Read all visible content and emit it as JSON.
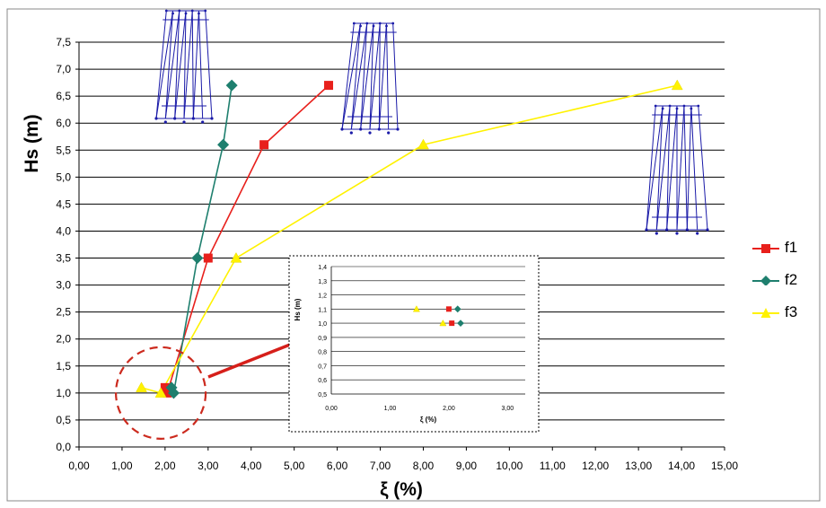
{
  "chart_data": [
    {
      "type": "scatter",
      "xlabel": "ξ (%)",
      "ylabel": "Hs (m)",
      "xlim": [
        0,
        15
      ],
      "ylim": [
        0,
        7.5
      ],
      "x_ticks": [
        "0,00",
        "1,00",
        "2,00",
        "3,00",
        "4,00",
        "5,00",
        "6,00",
        "7,00",
        "8,00",
        "9,00",
        "10,00",
        "11,00",
        "12,00",
        "13,00",
        "14,00",
        "15,00"
      ],
      "y_ticks": [
        "0,0",
        "0,5",
        "1,0",
        "1,5",
        "2,0",
        "2,5",
        "3,0",
        "3,5",
        "4,0",
        "4,5",
        "5,0",
        "5,5",
        "6,0",
        "6,5",
        "7,0",
        "7,5"
      ],
      "grid": "horizontal",
      "legend": "right",
      "series": [
        {
          "name": "f1",
          "color": "#e8201c",
          "marker": "square",
          "points": [
            [
              2.0,
              1.1
            ],
            [
              2.05,
              1.0
            ],
            [
              3.0,
              3.5
            ],
            [
              4.3,
              5.6
            ],
            [
              5.8,
              6.7
            ]
          ]
        },
        {
          "name": "f2",
          "color": "#1e7f6e",
          "marker": "diamond",
          "points": [
            [
              2.15,
              1.1
            ],
            [
              2.2,
              1.0
            ],
            [
              2.75,
              3.5
            ],
            [
              3.35,
              5.6
            ],
            [
              3.55,
              6.7
            ]
          ]
        },
        {
          "name": "f3",
          "color": "#fff200",
          "marker": "triangle",
          "points": [
            [
              1.45,
              1.1
            ],
            [
              1.9,
              1.0
            ],
            [
              3.65,
              3.5
            ],
            [
              8.0,
              5.6
            ],
            [
              13.9,
              6.7
            ]
          ]
        }
      ]
    },
    {
      "type": "scatter",
      "xlabel": "ξ (%)",
      "ylabel": "Hs (m)",
      "xlim": [
        0,
        3.3
      ],
      "ylim": [
        0.5,
        1.4
      ],
      "x_ticks": [
        "0,00",
        "1,00",
        "2,00",
        "3,00"
      ],
      "y_ticks": [
        "0,5",
        "0,6",
        "0,7",
        "0,8",
        "0,9",
        "1,0",
        "1,1",
        "1,2",
        "1,3",
        "1,4"
      ],
      "grid": "horizontal",
      "series": [
        {
          "name": "f1",
          "color": "#e8201c",
          "marker": "square",
          "points": [
            [
              2.0,
              1.1
            ],
            [
              2.05,
              1.0
            ]
          ]
        },
        {
          "name": "f2",
          "color": "#1e7f6e",
          "marker": "diamond",
          "points": [
            [
              2.15,
              1.1
            ],
            [
              2.2,
              1.0
            ]
          ]
        },
        {
          "name": "f3",
          "color": "#fff200",
          "marker": "triangle",
          "points": [
            [
              1.45,
              1.1
            ],
            [
              1.9,
              1.0
            ]
          ]
        }
      ]
    }
  ],
  "legend": [
    {
      "label": "f1",
      "color": "#e8201c",
      "marker": "square"
    },
    {
      "label": "f2",
      "color": "#1e7f6e",
      "marker": "diamond"
    },
    {
      "label": "f3",
      "color": "#fff200",
      "marker": "triangle"
    }
  ],
  "annotations": {
    "zoom_circle_color": "#cc2a1e",
    "arrow_color": "#d61f1a",
    "tower_color": "#1a1aa8"
  }
}
